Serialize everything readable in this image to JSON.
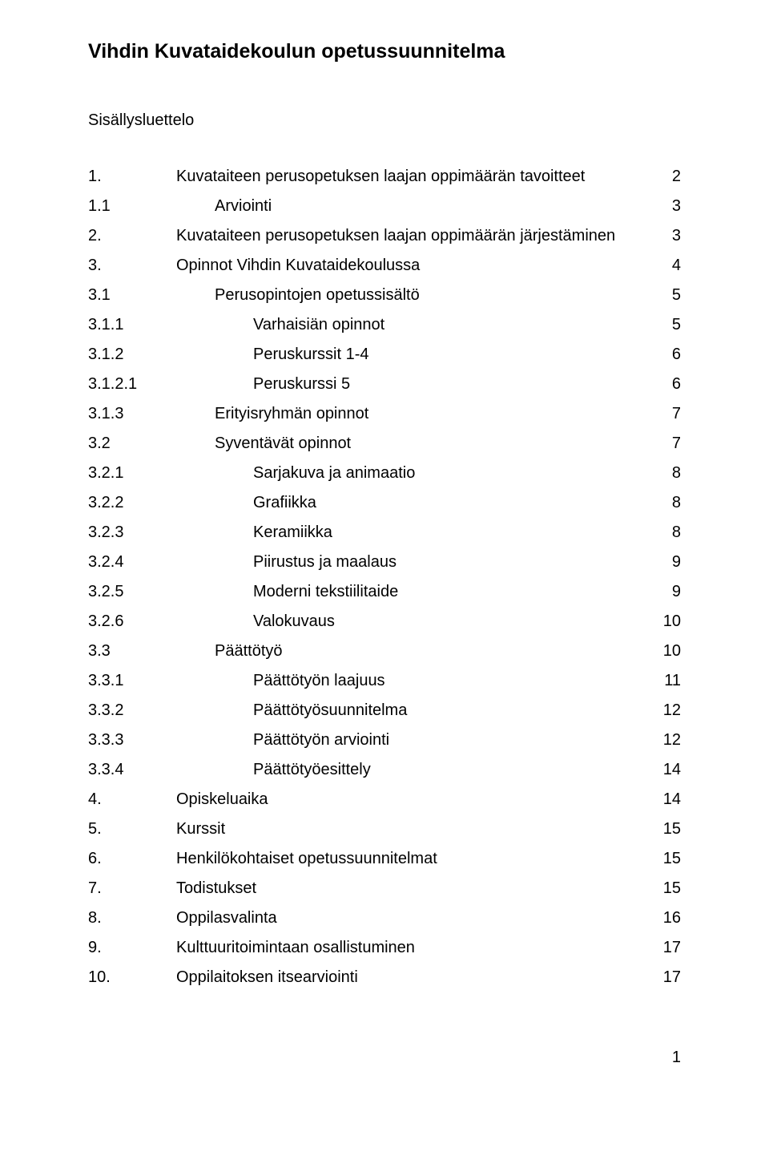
{
  "document": {
    "title": "Vihdin Kuvataidekoulun opetussuunnitelma",
    "toc_heading": "Sisällysluettelo",
    "page_number": "1",
    "entries": [
      {
        "num": "1.",
        "label": "Kuvataiteen perusopetuksen laajan oppimäärän tavoitteet",
        "page": "2",
        "indent": 0
      },
      {
        "num": "1.1",
        "label": "Arviointi",
        "page": "3",
        "indent": 1
      },
      {
        "num": "2.",
        "label": "Kuvataiteen perusopetuksen laajan oppimäärän järjestäminen",
        "page": "3",
        "indent": 0
      },
      {
        "num": "3.",
        "label": "Opinnot Vihdin Kuvataidekoulussa",
        "page": "4",
        "indent": 0
      },
      {
        "num": "3.1",
        "label": "Perusopintojen opetussisältö",
        "page": "5",
        "indent": 1
      },
      {
        "num": "3.1.1",
        "label": "Varhaisiän opinnot",
        "page": "5",
        "indent": 2
      },
      {
        "num": "3.1.2",
        "label": "Peruskurssit 1-4",
        "page": "6",
        "indent": 2
      },
      {
        "num": "3.1.2.1",
        "label": "Peruskurssi 5",
        "page": "6",
        "indent": 2
      },
      {
        "num": "3.1.3",
        "label": "Erityisryhmän opinnot",
        "page": "7",
        "indent": 1
      },
      {
        "num": "3.2",
        "label": "Syventävät opinnot",
        "page": "7",
        "indent": 1
      },
      {
        "num": "3.2.1",
        "label": "Sarjakuva ja animaatio",
        "page": "8",
        "indent": 2
      },
      {
        "num": "3.2.2",
        "label": "Grafiikka",
        "page": "8",
        "indent": 2
      },
      {
        "num": "3.2.3",
        "label": "Keramiikka",
        "page": "8",
        "indent": 2
      },
      {
        "num": "3.2.4",
        "label": "Piirustus ja maalaus",
        "page": "9",
        "indent": 2
      },
      {
        "num": "3.2.5",
        "label": "Moderni tekstiilitaide",
        "page": "9",
        "indent": 2
      },
      {
        "num": "3.2.6",
        "label": "Valokuvaus",
        "page": "10",
        "indent": 2
      },
      {
        "num": "3.3",
        "label": "Päättötyö",
        "page": "10",
        "indent": 1
      },
      {
        "num": "3.3.1",
        "label": "Päättötyön laajuus",
        "page": "11",
        "indent": 2
      },
      {
        "num": "3.3.2",
        "label": "Päättötyösuunnitelma",
        "page": "12",
        "indent": 2
      },
      {
        "num": "3.3.3",
        "label": "Päättötyön arviointi",
        "page": "12",
        "indent": 2
      },
      {
        "num": "3.3.4",
        "label": "Päättötyöesittely",
        "page": "14",
        "indent": 2
      },
      {
        "num": "4.",
        "label": "Opiskeluaika",
        "page": "14",
        "indent": 0
      },
      {
        "num": "5.",
        "label": "Kurssit",
        "page": "15",
        "indent": 0
      },
      {
        "num": "6.",
        "label": "Henkilökohtaiset opetussuunnitelmat",
        "page": "15",
        "indent": 0
      },
      {
        "num": "7.",
        "label": "Todistukset",
        "page": "15",
        "indent": 0
      },
      {
        "num": "8.",
        "label": "Oppilasvalinta",
        "page": "16",
        "indent": 0
      },
      {
        "num": "9.",
        "label": "Kulttuuritoimintaan osallistuminen",
        "page": "17",
        "indent": 0
      },
      {
        "num": "10.",
        "label": "Oppilaitoksen itsearviointi",
        "page": "17",
        "indent": 0
      }
    ]
  }
}
